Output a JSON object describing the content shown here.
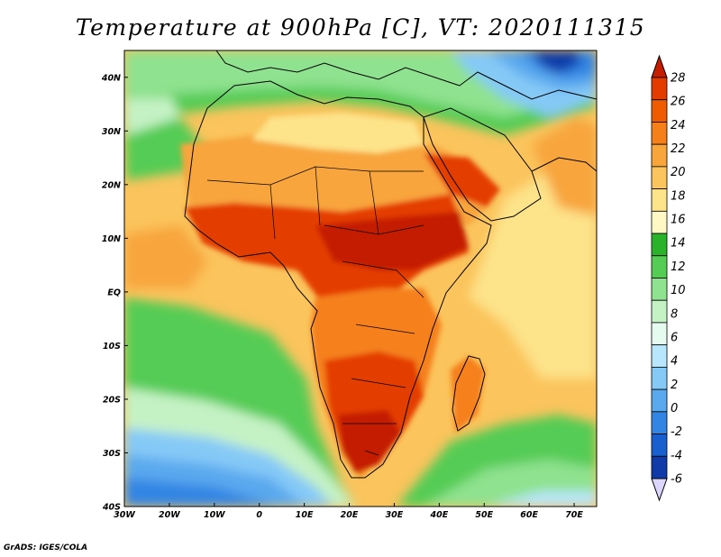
{
  "title": "Temperature at 900hPa [C], VT: 2020111315",
  "credit": "GrADS: IGES/COLA",
  "map": {
    "lon_labels": [
      "30W",
      "20W",
      "10W",
      "0",
      "10E",
      "20E",
      "30E",
      "40E",
      "50E",
      "60E",
      "70E"
    ],
    "lat_labels": [
      "40N",
      "30N",
      "20N",
      "10N",
      "EQ",
      "10S",
      "20S",
      "30S",
      "40S"
    ],
    "lon_range": [
      -30,
      75
    ],
    "lat_range": [
      -40,
      45
    ]
  },
  "colorbar": {
    "labels": [
      "28",
      "26",
      "24",
      "22",
      "20",
      "18",
      "16",
      "14",
      "12",
      "10",
      "8",
      "6",
      "4",
      "2",
      "0",
      "-2",
      "-4",
      "-6"
    ],
    "colors": [
      "#c41d00",
      "#e43c00",
      "#f05a00",
      "#f5801a",
      "#f8a53c",
      "#fbc45c",
      "#fde38a",
      "#fff8c4",
      "#2ab22a",
      "#55cc55",
      "#8fe28f",
      "#c5f2c5",
      "#e6fbf0",
      "#b8e6fc",
      "#85c9f7",
      "#5aa9ee",
      "#3385e4",
      "#1a5fcf",
      "#0f3aa8",
      "#0b1f7a"
    ]
  },
  "colors": {
    "ocean_warm": "#fbc45c",
    "land_hot": "#e43c00",
    "land_very_hot": "#c41d00",
    "sahara": "#f8a53c",
    "mediterranean": "#8fe28f",
    "atlantic_cold": "#5aa9ee",
    "south_cold": "#3385e4",
    "caspian_cold": "#0f3aa8"
  }
}
